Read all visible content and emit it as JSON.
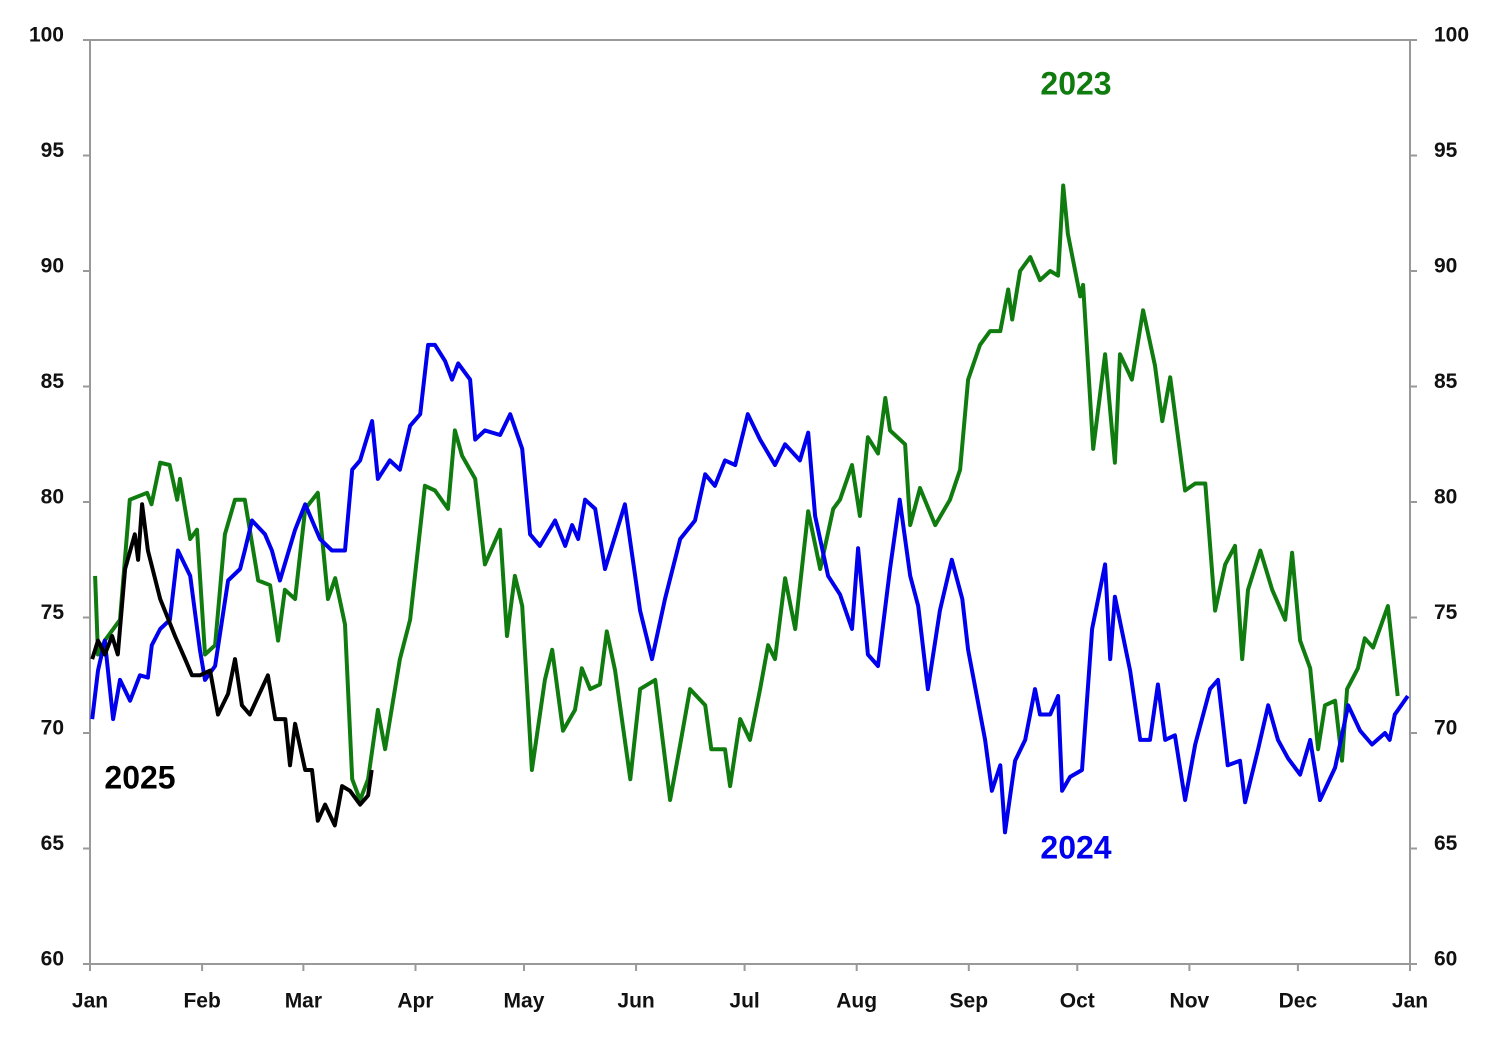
{
  "chart_data": {
    "type": "line",
    "xlim": [
      0,
      365
    ],
    "xticks": [
      {
        "value": 0,
        "label": "Jan"
      },
      {
        "value": 31,
        "label": "Feb"
      },
      {
        "value": 59,
        "label": "Mar"
      },
      {
        "value": 90,
        "label": "Apr"
      },
      {
        "value": 120,
        "label": "May"
      },
      {
        "value": 151,
        "label": "Jun"
      },
      {
        "value": 181,
        "label": "Jul"
      },
      {
        "value": 212,
        "label": "Aug"
      },
      {
        "value": 243,
        "label": "Sep"
      },
      {
        "value": 273,
        "label": "Oct"
      },
      {
        "value": 304,
        "label": "Nov"
      },
      {
        "value": 334,
        "label": "Dec"
      },
      {
        "value": 365,
        "label": "Jan"
      }
    ],
    "ylim": [
      60,
      100
    ],
    "yticks": [
      60,
      65,
      70,
      75,
      80,
      85,
      90,
      95,
      100
    ],
    "grid": false,
    "series": [
      {
        "name": "2023",
        "color": "#107c10",
        "x": [
          1.4,
          2.2,
          4.1,
          8.3,
          11,
          15.8,
          17,
          19.4,
          22,
          24.1,
          24.9,
          27.7,
          29.6,
          31.8,
          34.6,
          37.3,
          40.1,
          42.8,
          46.5,
          49.8,
          52,
          53.9,
          56.7,
          59.5,
          63,
          65.8,
          67.8,
          70.5,
          72.5,
          74.7,
          76.9,
          79.6,
          81.6,
          85.7,
          88.5,
          92.6,
          95.4,
          99,
          100.9,
          102.9,
          106.5,
          109.2,
          113.4,
          115.3,
          117.5,
          119.5,
          122.2,
          125.8,
          127.8,
          130.8,
          134.1,
          136,
          138.3,
          141,
          142.9,
          145.2,
          149.4,
          152.1,
          156.3,
          160.4,
          163.2,
          165.9,
          170.1,
          171.8,
          175.6,
          177,
          179.8,
          182.5,
          185.3,
          187.5,
          189.4,
          192.2,
          195,
          198.6,
          201.9,
          205.5,
          207.4,
          210.7,
          212.9,
          215.1,
          217.9,
          219.9,
          221.2,
          225.4,
          226.8,
          229.5,
          233.7,
          237.8,
          240.6,
          242.8,
          246.1,
          248.9,
          251.7,
          253.9,
          255,
          257.2,
          260,
          262.7,
          265.5,
          267.7,
          269.1,
          270.4,
          273.8,
          274.6,
          277.4,
          280.7,
          283.4,
          284.8,
          288.1,
          291.2,
          294.5,
          296.5,
          298.7,
          302.8,
          305.6,
          308.4,
          311.1,
          313.9,
          316.6,
          318.6,
          320.2,
          323.6,
          326.9,
          330.5,
          332.4,
          334.6,
          337.4,
          339.6,
          341.5,
          344.3,
          346.2,
          347.6,
          350.6,
          352.5,
          354.8,
          358.9,
          361.6
        ],
        "values": [
          76.8,
          73.4,
          74,
          74.9,
          80.1,
          80.4,
          79.9,
          81.7,
          81.6,
          80.1,
          81,
          78.4,
          78.8,
          73.4,
          73.8,
          78.6,
          80.1,
          80.1,
          76.6,
          76.4,
          74,
          76.2,
          75.8,
          79.7,
          80.4,
          75.8,
          76.7,
          74.7,
          68,
          67.1,
          68,
          71,
          69.3,
          73.2,
          74.9,
          80.7,
          80.5,
          79.7,
          83.1,
          82,
          81,
          77.3,
          78.8,
          74.2,
          76.8,
          75.5,
          68.4,
          72.3,
          73.6,
          70.1,
          71,
          72.8,
          71.9,
          72.1,
          74.4,
          72.7,
          68,
          71.9,
          72.3,
          67.1,
          69.5,
          71.9,
          71.2,
          69.3,
          69.3,
          67.7,
          70.6,
          69.7,
          71.9,
          73.8,
          73.2,
          76.7,
          74.5,
          79.6,
          77.1,
          79.7,
          80.1,
          81.6,
          79.4,
          82.8,
          82.1,
          84.5,
          83.1,
          82.5,
          79,
          80.6,
          79,
          80.1,
          81.4,
          85.3,
          86.8,
          87.4,
          87.4,
          89.2,
          87.9,
          90,
          90.6,
          89.6,
          90,
          89.8,
          93.7,
          91.6,
          88.9,
          89.4,
          82.3,
          86.4,
          81.7,
          86.4,
          85.3,
          88.3,
          85.9,
          83.5,
          85.4,
          80.5,
          80.8,
          80.8,
          75.3,
          77.3,
          78.1,
          73.2,
          76.2,
          77.9,
          76.2,
          74.9,
          77.8,
          74,
          72.8,
          69.3,
          71.2,
          71.4,
          68.8,
          71.9,
          72.8,
          74.1,
          73.7,
          75.5,
          71.6
        ]
      },
      {
        "name": "2024",
        "color": "#0000ee",
        "x": [
          0.6,
          2.2,
          4.1,
          6.4,
          8.3,
          11.1,
          13.8,
          16,
          17.1,
          19.4,
          22.1,
          24.3,
          27.7,
          30.4,
          31.8,
          34.6,
          38.2,
          41.5,
          42.8,
          44.8,
          48.4,
          50.3,
          52.5,
          56.7,
          59.5,
          63.6,
          66.9,
          70.5,
          72.5,
          74.7,
          78,
          79.6,
          82.9,
          85.7,
          88.5,
          91.3,
          93.5,
          95.4,
          98.2,
          100.1,
          101.8,
          105.1,
          106.5,
          109.2,
          113.4,
          116.2,
          119.5,
          121.7,
          124.4,
          128.6,
          131.4,
          133.3,
          135,
          136.9,
          139.7,
          142.4,
          147.9,
          152.1,
          155.4,
          159,
          163.2,
          167.3,
          170.1,
          172.8,
          175.6,
          178.4,
          181.9,
          185.3,
          189.4,
          192.2,
          196.3,
          198.6,
          200.5,
          204.1,
          207.4,
          210.7,
          212.4,
          215.1,
          217.9,
          221.2,
          223.9,
          226.8,
          229,
          231.7,
          235,
          238.3,
          241.2,
          242.8,
          247.5,
          249.4,
          251.7,
          253,
          255.8,
          258.6,
          261.3,
          262.7,
          265.5,
          267.7,
          268.8,
          271,
          274.3,
          277.1,
          280.7,
          282.1,
          283.4,
          287.6,
          290.4,
          293.1,
          295.3,
          297.3,
          300,
          302.8,
          305.6,
          309.7,
          311.9,
          314.6,
          318,
          319.4,
          323,
          325.8,
          328.5,
          331.3,
          334.6,
          337.4,
          340.1,
          344.3,
          347.9,
          351.2,
          354.5,
          358.1,
          359.4,
          360.8,
          364.4
        ],
        "values": [
          70.6,
          72.7,
          74,
          70.6,
          72.3,
          71.4,
          72.5,
          72.4,
          73.8,
          74.5,
          74.9,
          77.9,
          76.8,
          73.6,
          72.3,
          72.9,
          76.6,
          77.1,
          77.9,
          79.2,
          78.6,
          77.9,
          76.6,
          78.8,
          79.9,
          78.4,
          77.9,
          77.9,
          81.4,
          81.8,
          83.5,
          81,
          81.8,
          81.4,
          83.3,
          83.8,
          86.8,
          86.8,
          86.1,
          85.3,
          86,
          85.3,
          82.7,
          83.1,
          82.9,
          83.8,
          82.3,
          78.6,
          78.1,
          79.2,
          78.1,
          79,
          78.4,
          80.1,
          79.7,
          77.1,
          79.9,
          75.3,
          73.2,
          75.8,
          78.4,
          79.2,
          81.2,
          80.7,
          81.8,
          81.6,
          83.8,
          82.7,
          81.6,
          82.5,
          81.8,
          83,
          79.4,
          76.8,
          76,
          74.5,
          78,
          73.4,
          72.9,
          77.1,
          80.1,
          76.8,
          75.5,
          71.9,
          75.3,
          77.5,
          75.8,
          73.6,
          69.7,
          67.5,
          68.6,
          65.7,
          68.8,
          69.7,
          71.9,
          70.8,
          70.8,
          71.6,
          67.5,
          68.1,
          68.4,
          74.5,
          77.3,
          73.2,
          75.9,
          72.7,
          69.7,
          69.7,
          72.1,
          69.7,
          69.9,
          67.1,
          69.5,
          71.9,
          72.3,
          68.6,
          68.8,
          67,
          69.3,
          71.2,
          69.7,
          68.9,
          68.2,
          69.7,
          67.1,
          68.5,
          71.2,
          70.1,
          69.5,
          70,
          69.7,
          70.8,
          71.6
        ]
      },
      {
        "name": "2025",
        "color": "#000000",
        "x": [
          0.6,
          2.2,
          4.1,
          6.1,
          7.7,
          9.7,
          12.4,
          13.3,
          14.4,
          16,
          19.4,
          23.5,
          26.3,
          28.2,
          30.4,
          33.2,
          35.4,
          38.2,
          40.1,
          42,
          44.2,
          49.2,
          51.2,
          54,
          55.3,
          56.7,
          59.5,
          61.4,
          63,
          65,
          67.7,
          69.7,
          71.9,
          74.7,
          76.9,
          77.9
        ],
        "values": [
          73.2,
          74,
          73.4,
          74.2,
          73.4,
          77.1,
          78.6,
          77.5,
          79.9,
          77.9,
          75.8,
          74.2,
          73.2,
          72.5,
          72.5,
          72.7,
          70.8,
          71.7,
          73.2,
          71.2,
          70.8,
          72.5,
          70.6,
          70.6,
          68.6,
          70.4,
          68.4,
          68.4,
          66.2,
          66.9,
          66,
          67.7,
          67.5,
          66.9,
          67.3,
          68.4
        ]
      }
    ]
  }
}
